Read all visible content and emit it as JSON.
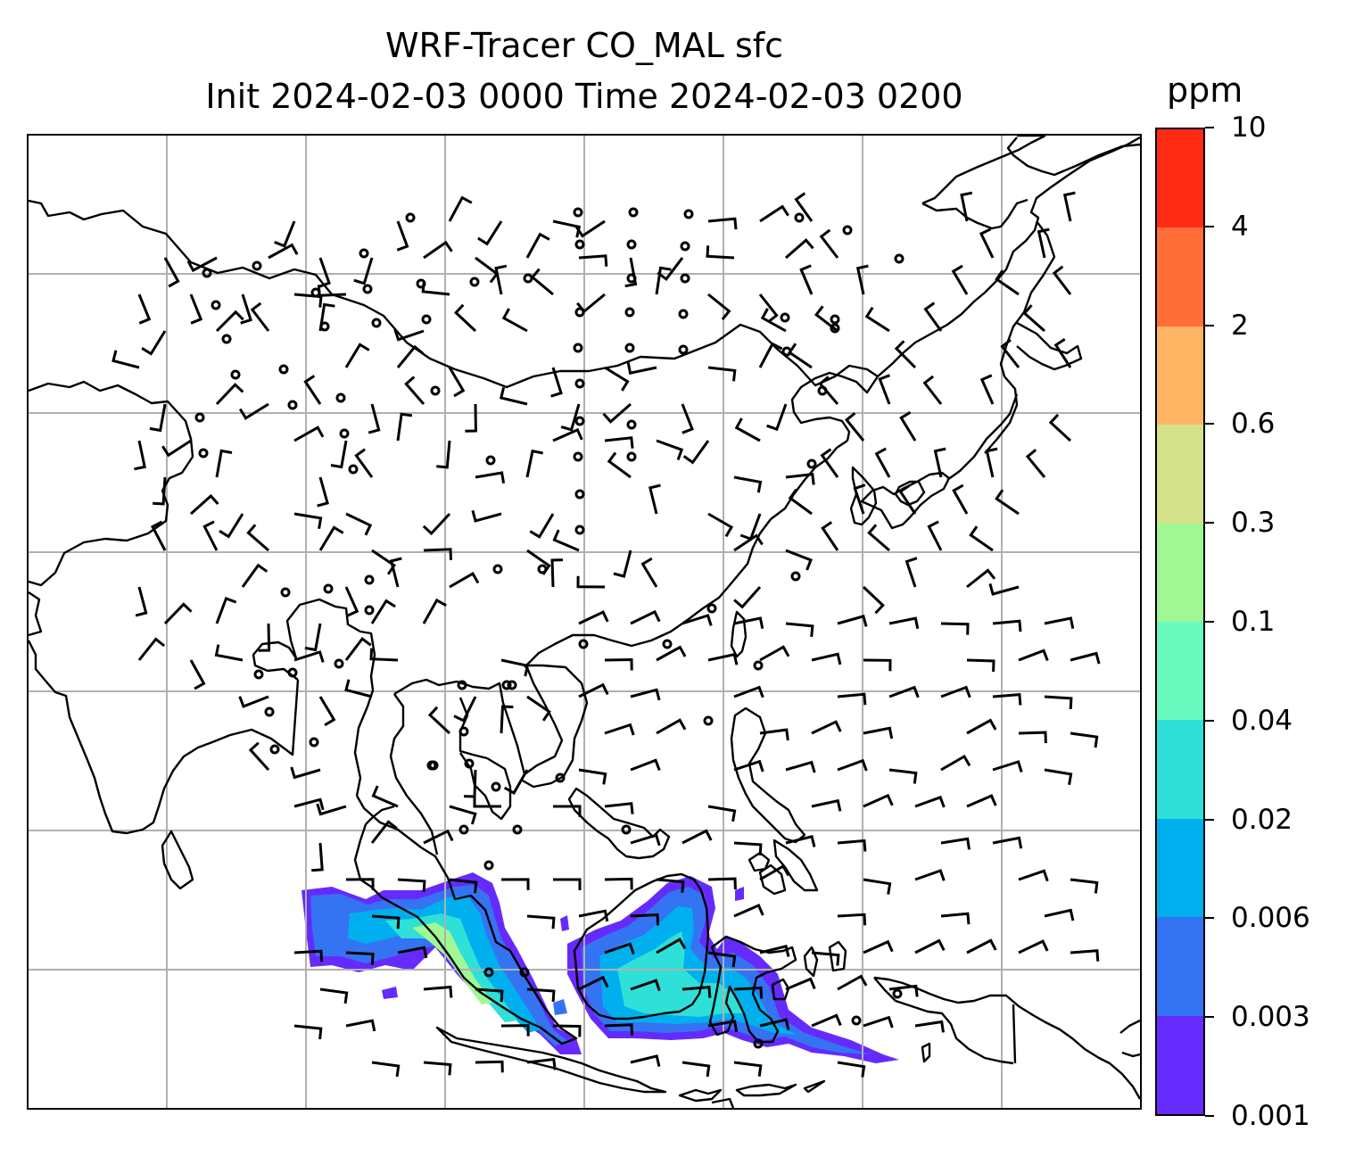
{
  "title": {
    "line1": "WRF-Tracer CO_MAL sfc",
    "line2": "Init 2024-02-03 0000 Time 2024-02-03 0200"
  },
  "colorbar": {
    "unit": "ppm",
    "labels_top_to_bottom": [
      "10",
      "4",
      "2",
      "0.6",
      "0.3",
      "0.1",
      "0.04",
      "0.02",
      "0.006",
      "0.003",
      "0.001"
    ],
    "colors_top_to_bottom": [
      "#ff2a14",
      "#ff6d38",
      "#feb462",
      "#d4e28a",
      "#9ff894",
      "#6afac0",
      "#2ee0d8",
      "#00b0ee",
      "#3474f3",
      "#652bfd"
    ]
  },
  "map": {
    "gridlines": true,
    "coastlines": true,
    "wind_barbs": true,
    "tracer_plume_colors": [
      "#652bfd",
      "#3474f3",
      "#00b0ee",
      "#2ee0d8",
      "#9ff894"
    ]
  }
}
